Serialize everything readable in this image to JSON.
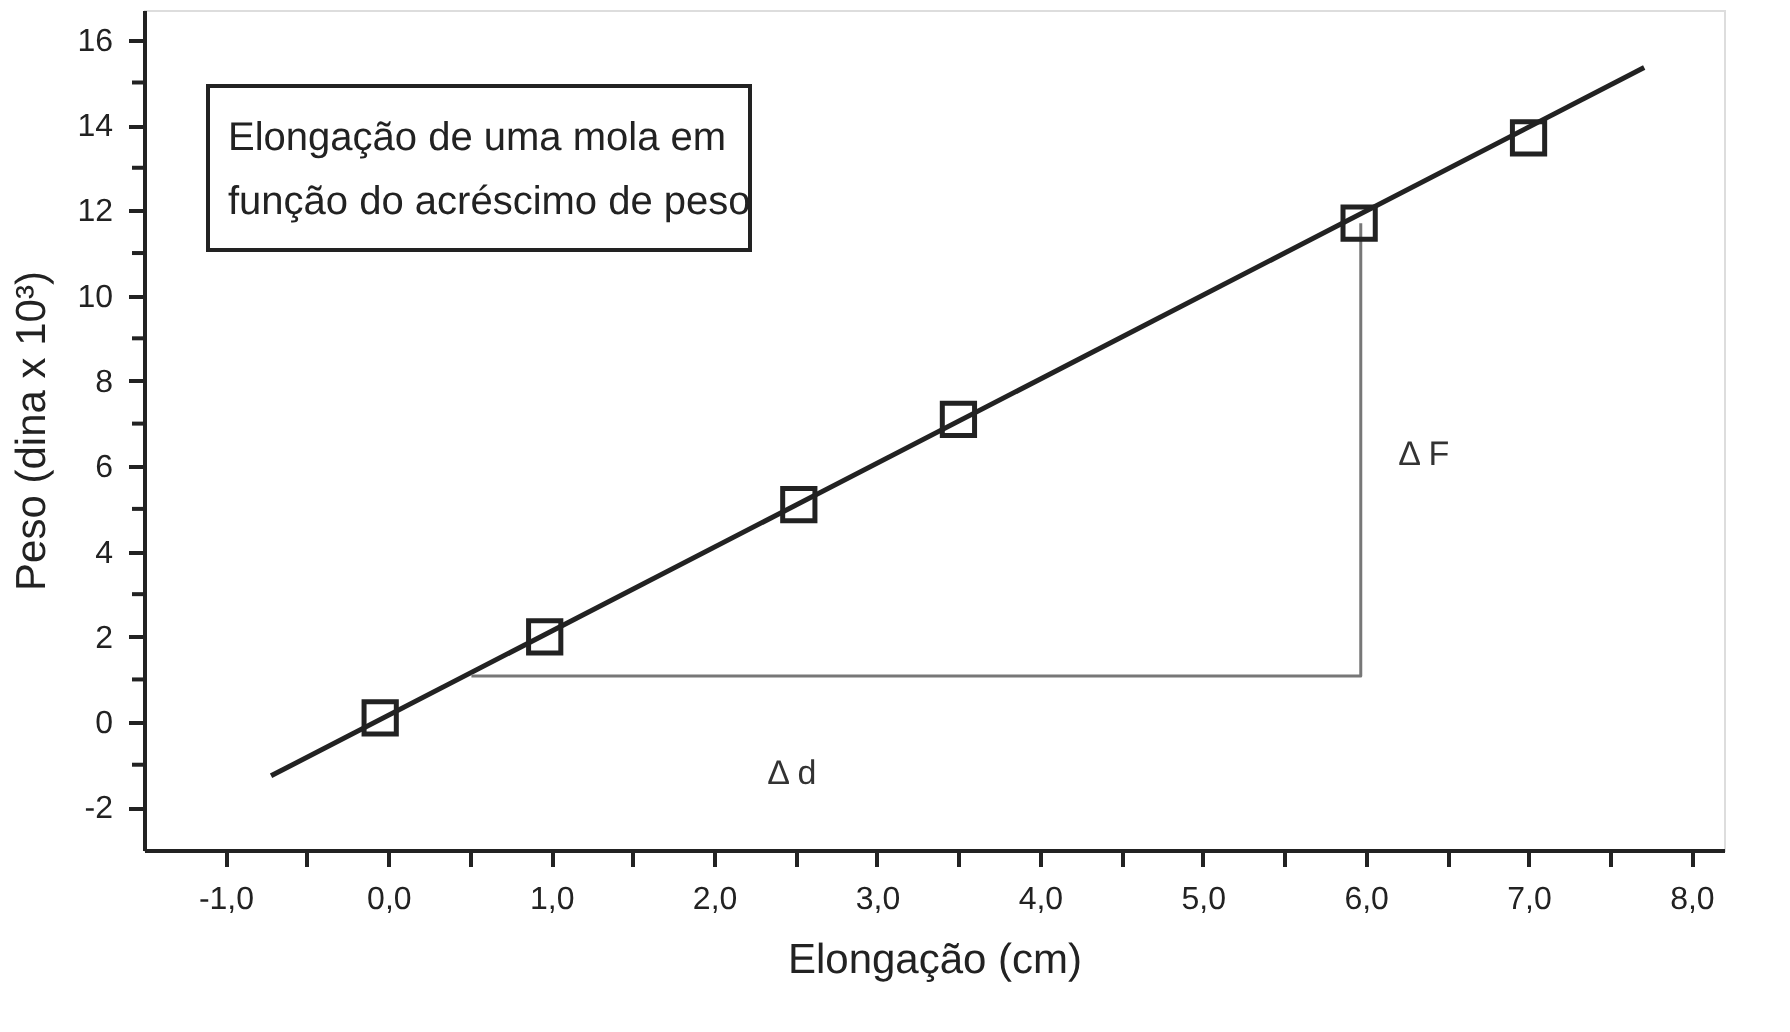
{
  "chart_data": {
    "type": "scatter",
    "title": "Elongação de uma mola em\nfunção do acréscimo de peso",
    "xlabel": "Elongação (cm)",
    "ylabel": "Peso (dina x 10³)",
    "series": [
      {
        "type": "line",
        "color": "#222222",
        "x": [
          -0.72,
          7.71
        ],
        "values": [
          -1.26,
          15.35
        ]
      },
      {
        "type": "line",
        "color": "#777777",
        "x": [
          0.51,
          5.97,
          5.97
        ],
        "values": [
          1.08,
          1.08,
          11.7
        ]
      },
      {
        "color": "#222222",
        "marker": "square",
        "x": [
          -0.05,
          0.96,
          2.52,
          3.5,
          5.96,
          7.0
        ],
        "values": [
          0.1,
          2.0,
          5.1,
          7.1,
          11.7,
          13.7
        ]
      }
    ],
    "annotations": [
      "Δ F",
      "Δ d"
    ],
    "xlim": [
      -1.5,
      8.2
    ],
    "ylim": [
      -3,
      16.7
    ],
    "xticks": [
      {
        "value": -1,
        "label": "-1,0"
      },
      {
        "value": -0.5,
        "label": null
      },
      {
        "value": 0,
        "label": "0,0"
      },
      {
        "value": 0.5,
        "label": null
      },
      {
        "value": 1,
        "label": "1,0"
      },
      {
        "value": 1.5,
        "label": null
      },
      {
        "value": 2,
        "label": "2,0"
      },
      {
        "value": 2.5,
        "label": null
      },
      {
        "value": 3,
        "label": "3,0"
      },
      {
        "value": 3.5,
        "label": null
      },
      {
        "value": 4,
        "label": "4,0"
      },
      {
        "value": 4.5,
        "label": null
      },
      {
        "value": 5,
        "label": "5,0"
      },
      {
        "value": 5.5,
        "label": null
      },
      {
        "value": 6,
        "label": "6,0"
      },
      {
        "value": 6.5,
        "label": null
      },
      {
        "value": 7,
        "label": "7,0"
      },
      {
        "value": 7.5,
        "label": null
      },
      {
        "value": 8,
        "label": "8,0"
      }
    ],
    "yticks": [
      -2,
      {
        "value": -1,
        "label": null
      },
      0,
      {
        "value": 1,
        "label": null
      },
      2,
      {
        "value": 3,
        "label": null
      },
      4,
      {
        "value": 5,
        "label": null
      },
      6,
      {
        "value": 7,
        "label": null
      },
      8,
      {
        "value": 9,
        "label": null
      },
      10,
      {
        "value": 11,
        "label": null
      },
      12,
      {
        "value": 13,
        "label": null
      },
      14,
      {
        "value": 15,
        "label": null
      },
      16
    ],
    "grid": false
  }
}
